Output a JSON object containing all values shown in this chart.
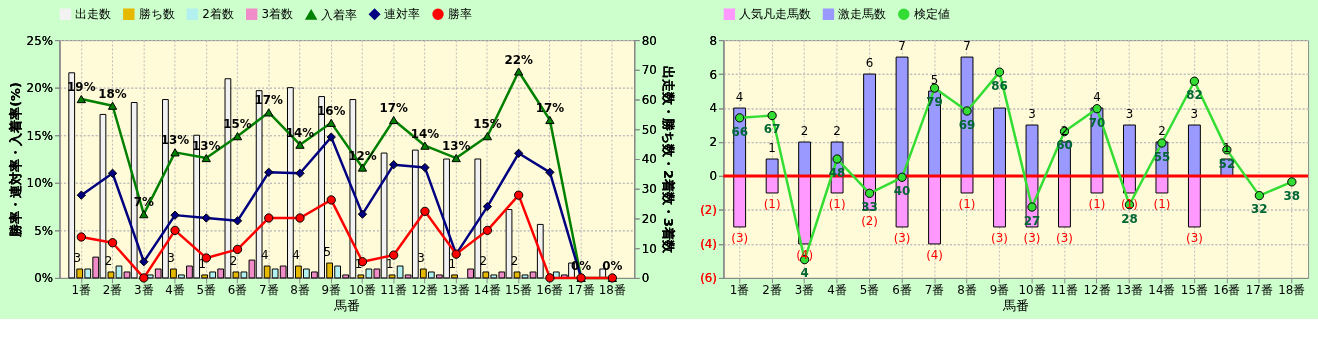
{
  "chart_data": [
    {
      "type": "bar",
      "categories": [
        "1番",
        "2番",
        "3番",
        "4番",
        "5番",
        "6番",
        "7番",
        "8番",
        "9番",
        "10番",
        "11番",
        "12番",
        "13番",
        "14番",
        "15番",
        "16番",
        "17番",
        "18番"
      ],
      "xlabel": "馬番",
      "ylabel": "勝率・連対率・入着率(%)",
      "y2label": "出走数・勝ち数・2着数・3着数",
      "ylim": [
        0,
        25
      ],
      "yticks": [
        {
          "value": 0,
          "label": "0%"
        },
        {
          "value": 5,
          "label": "5%"
        },
        {
          "value": 10,
          "label": "10%"
        },
        {
          "value": 15,
          "label": "15%"
        },
        {
          "value": 20,
          "label": "20%"
        },
        {
          "value": 25,
          "label": "25%"
        }
      ],
      "y2lim": [
        0,
        80
      ],
      "y2ticks": [
        0,
        10,
        20,
        30,
        40,
        50,
        60,
        70,
        80
      ],
      "grid": true,
      "legend": "top",
      "series": [
        {
          "name": "出走数",
          "color": "#f2f2f2",
          "axis": "y2",
          "values": [
            69,
            55,
            59,
            60,
            48,
            67,
            63,
            64,
            61,
            60,
            42,
            43,
            40,
            40,
            23,
            18,
            5,
            3
          ]
        },
        {
          "name": "勝ち数",
          "color": "#e6b800",
          "axis": "y2",
          "values": [
            3,
            2,
            0,
            3,
            1,
            2,
            4,
            4,
            5,
            1,
            1,
            3,
            1,
            2,
            2,
            0,
            0,
            0
          ],
          "value_labels": [
            "3",
            "2",
            null,
            "3",
            "1",
            "2",
            "4",
            "4",
            "5",
            "1",
            "1",
            "3",
            "1",
            "2",
            "2",
            null,
            null,
            null
          ]
        },
        {
          "name": "2着数",
          "color": "#b3f0f0",
          "axis": "y2",
          "values": [
            3,
            4,
            1,
            1,
            2,
            2,
            3,
            3,
            4,
            3,
            4,
            2,
            0,
            1,
            1,
            2,
            0,
            0
          ]
        },
        {
          "name": "3着数",
          "color": "#f08cc8",
          "axis": "y2",
          "values": [
            7,
            2,
            3,
            4,
            3,
            6,
            4,
            2,
            1,
            3,
            1,
            1,
            3,
            2,
            2,
            1,
            0,
            0
          ]
        },
        {
          "name": "入着率",
          "type": "line",
          "color": "#008000",
          "marker": "triangle",
          "values": [
            18.8,
            18.1,
            6.7,
            13.2,
            12.6,
            14.9,
            17.4,
            14.0,
            16.3,
            11.6,
            16.6,
            13.9,
            12.6,
            14.9,
            21.7,
            16.6,
            0,
            0
          ],
          "value_labels": [
            "19%",
            "18%",
            "7%",
            "13%",
            "13%",
            "15%",
            "17%",
            "14%",
            "16%",
            "12%",
            "17%",
            "14%",
            "13%",
            "15%",
            "22%",
            "17%",
            "0%",
            "0%"
          ]
        },
        {
          "name": "連対率",
          "type": "line",
          "color": "#000080",
          "marker": "diamond",
          "values": [
            8.7,
            11.0,
            1.7,
            6.6,
            6.3,
            6.0,
            11.1,
            11.0,
            14.8,
            6.7,
            11.9,
            11.6,
            2.5,
            7.5,
            13.1,
            11.1,
            0,
            null
          ]
        },
        {
          "name": "勝率",
          "type": "line",
          "color": "#ff0000",
          "marker": "circle",
          "values": [
            4.3,
            3.7,
            0,
            5.0,
            2.1,
            3.0,
            6.3,
            6.3,
            8.2,
            1.7,
            2.4,
            7.0,
            2.5,
            5.0,
            8.7,
            0,
            0,
            0
          ]
        }
      ]
    },
    {
      "type": "bar",
      "stacked": true,
      "categories": [
        "1番",
        "2番",
        "3番",
        "4番",
        "5番",
        "6番",
        "7番",
        "8番",
        "9番",
        "10番",
        "11番",
        "12番",
        "13番",
        "14番",
        "15番",
        "16番",
        "17番",
        "18番"
      ],
      "xlabel": "馬番",
      "ylim": [
        -6,
        8
      ],
      "yticks": [
        {
          "value": -6,
          "label": "(6)"
        },
        {
          "value": -4,
          "label": "(4)"
        },
        {
          "value": -2,
          "label": "(2)"
        },
        0,
        2,
        4,
        6,
        8
      ],
      "y2lim": [
        -4,
        100
      ],
      "grid": true,
      "legend": "top",
      "ref_lines": [
        {
          "axis": "y",
          "value": 0,
          "color": "#ff0000"
        }
      ],
      "series": [
        {
          "name": "人気凡走馬数",
          "color": "#ff99ff",
          "values": [
            -3,
            -1,
            -4,
            -1,
            -2,
            -3,
            -4,
            -1,
            -3,
            -3,
            -3,
            -1,
            -1,
            -1,
            -3,
            null,
            null,
            null
          ],
          "value_labels": [
            "(3)",
            "(1)",
            "(4)",
            "(1)",
            "(2)",
            "(3)",
            "(4)",
            "(1)",
            "(3)",
            "(3)",
            "(3)",
            "(1)",
            "(1)",
            "(1)",
            "(3)",
            null,
            null,
            null
          ]
        },
        {
          "name": "激走馬数",
          "color": "#9999ff",
          "values": [
            4,
            1,
            2,
            2,
            6,
            7,
            5,
            7,
            4,
            3,
            2,
            4,
            3,
            2,
            3,
            1,
            null,
            null
          ],
          "value_labels": [
            "4",
            "1",
            "2",
            "2",
            "6",
            "7",
            "5",
            "7",
            null,
            "3",
            "2",
            "4",
            "3",
            "2",
            "3",
            "1",
            null,
            null
          ]
        },
        {
          "name": "検定値",
          "type": "line",
          "color": "#33dd33",
          "marker": "circle",
          "axis": "y2",
          "values": [
            66,
            67,
            4,
            48,
            33,
            40,
            79,
            69,
            86,
            27,
            60,
            70,
            28,
            55,
            82,
            52,
            32,
            38
          ],
          "value_labels": [
            "66",
            "67",
            "4",
            "48",
            "33",
            "40",
            "79",
            "69",
            "86",
            "27",
            "60",
            "70",
            "28",
            "55",
            "82",
            "52",
            "32",
            "38"
          ]
        }
      ]
    }
  ]
}
